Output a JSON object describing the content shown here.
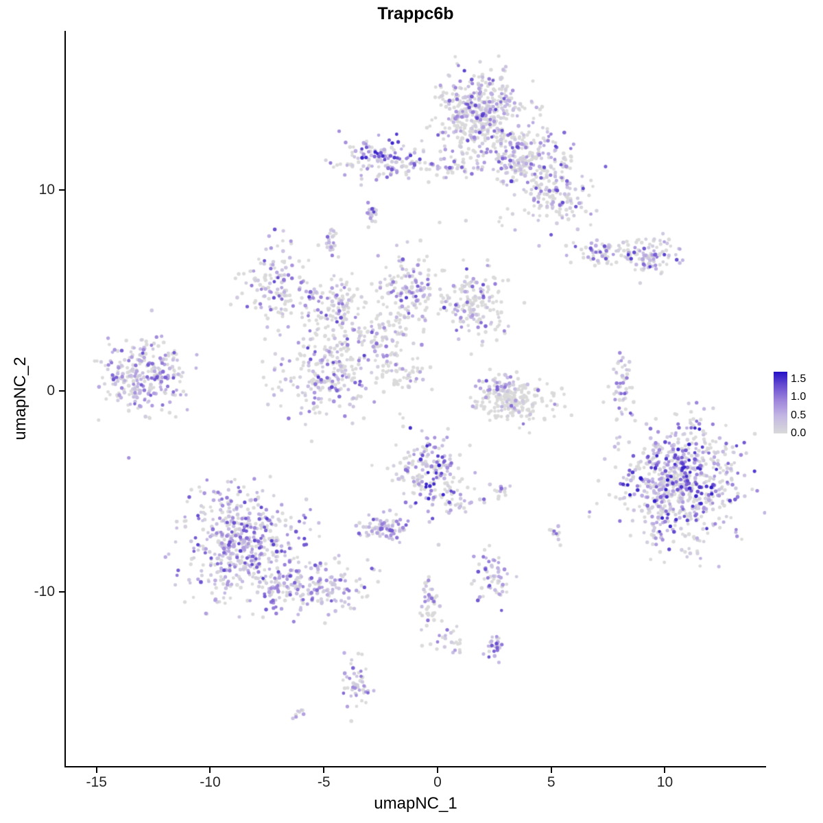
{
  "chart_data": {
    "type": "scatter",
    "title": "Trappc6b",
    "xlabel": "umapNC_1",
    "ylabel": "umapNC_2",
    "xlim": [
      -16.38,
      14.45
    ],
    "ylim": [
      -18.72,
      17.92
    ],
    "x_ticks": [
      "-15",
      "-10",
      "-5",
      "0",
      "5",
      "10"
    ],
    "x_tick_values": [
      -15,
      -10,
      -5,
      0,
      5,
      10
    ],
    "y_ticks": [
      "-10",
      "0",
      "10"
    ],
    "y_tick_values": [
      -10,
      0,
      10
    ],
    "grid": false,
    "legend_position": "right",
    "legend": {
      "ticks": [
        "1.5",
        "1.0",
        "0.5",
        "0.0"
      ],
      "values": [
        1.5,
        1.0,
        0.5,
        0.0
      ],
      "bar_domain": [
        0,
        1.7
      ]
    },
    "color_scale": {
      "domain": [
        0,
        1.75
      ],
      "gray_zero": "#d9d9d9",
      "high_blue": "#2310c6",
      "stops": [
        [
          0.0,
          "#d9d9d9"
        ],
        [
          0.28,
          "#c3b7e3"
        ],
        [
          0.55,
          "#9b82da"
        ],
        [
          0.8,
          "#6247cf"
        ],
        [
          1.0,
          "#2310c6"
        ]
      ]
    },
    "point_radius": 2.6,
    "seed": 7,
    "clusters_columns": [
      "cx",
      "cy",
      "sx",
      "sy",
      "n",
      "pos_frac",
      "max_expr"
    ],
    "clusters": [
      [
        1.9,
        13.8,
        0.95,
        1.0,
        460,
        0.5,
        1.5
      ],
      [
        3.9,
        11.5,
        1.0,
        0.7,
        200,
        0.5,
        1.5
      ],
      [
        5.3,
        9.6,
        0.65,
        0.75,
        130,
        0.55,
        1.5
      ],
      [
        -2.4,
        11.6,
        0.9,
        0.5,
        130,
        0.65,
        1.7
      ],
      [
        0.0,
        11.15,
        1.2,
        0.3,
        55,
        0.5,
        1.4
      ],
      [
        -2.9,
        8.8,
        0.15,
        0.3,
        22,
        0.8,
        1.6
      ],
      [
        -4.7,
        7.4,
        0.2,
        0.35,
        22,
        0.7,
        1.4
      ],
      [
        2.3,
        8.4,
        1.1,
        0.5,
        8,
        0.4,
        1.2
      ],
      [
        7.2,
        6.9,
        0.7,
        0.35,
        70,
        0.5,
        1.4
      ],
      [
        9.3,
        6.8,
        0.6,
        0.5,
        95,
        0.6,
        1.6
      ],
      [
        -6.9,
        5.3,
        0.8,
        0.95,
        140,
        0.5,
        1.5
      ],
      [
        -4.4,
        4.0,
        0.8,
        0.8,
        115,
        0.4,
        1.4
      ],
      [
        -1.2,
        5.0,
        0.7,
        0.95,
        150,
        0.5,
        1.5
      ],
      [
        1.7,
        4.3,
        0.7,
        0.8,
        160,
        0.45,
        1.5
      ],
      [
        -4.9,
        0.8,
        1.0,
        1.15,
        230,
        0.5,
        1.5
      ],
      [
        -2.7,
        2.6,
        0.8,
        0.7,
        90,
        0.35,
        1.3
      ],
      [
        -1.5,
        0.9,
        0.6,
        0.45,
        50,
        0.3,
        1.2
      ],
      [
        -12.9,
        0.8,
        0.85,
        0.9,
        280,
        0.6,
        1.4
      ],
      [
        3.4,
        -0.5,
        0.85,
        0.5,
        200,
        0.15,
        1.2
      ],
      [
        2.6,
        0.3,
        0.5,
        0.25,
        40,
        0.7,
        1.4
      ],
      [
        8.1,
        0.1,
        0.22,
        0.8,
        50,
        0.6,
        1.5
      ],
      [
        10.6,
        -4.5,
        1.25,
        1.45,
        720,
        0.62,
        1.75
      ],
      [
        -0.45,
        -4.0,
        0.75,
        1.0,
        180,
        0.6,
        1.75
      ],
      [
        1.0,
        -5.3,
        0.5,
        0.4,
        30,
        0.55,
        1.4
      ],
      [
        2.8,
        -4.9,
        0.28,
        0.18,
        14,
        0.7,
        1.4
      ],
      [
        -2.4,
        -6.9,
        0.5,
        0.35,
        80,
        0.75,
        1.5
      ],
      [
        5.1,
        -7.1,
        0.18,
        0.3,
        12,
        0.5,
        1.2
      ],
      [
        -8.6,
        -7.6,
        1.2,
        1.4,
        520,
        0.72,
        1.5
      ],
      [
        -5.6,
        -9.7,
        1.2,
        0.7,
        200,
        0.68,
        1.4
      ],
      [
        2.4,
        -9.3,
        0.4,
        0.55,
        60,
        0.6,
        1.4
      ],
      [
        -0.3,
        -10.7,
        0.22,
        0.75,
        45,
        0.5,
        1.4
      ],
      [
        0.7,
        -12.5,
        0.3,
        0.35,
        20,
        0.6,
        1.3
      ],
      [
        2.6,
        -12.7,
        0.25,
        0.45,
        25,
        0.6,
        1.4
      ],
      [
        -3.6,
        -14.7,
        0.3,
        0.75,
        50,
        0.6,
        1.4
      ],
      [
        -6.1,
        -16.1,
        0.13,
        0.13,
        8,
        0.5,
        1.0
      ]
    ]
  }
}
